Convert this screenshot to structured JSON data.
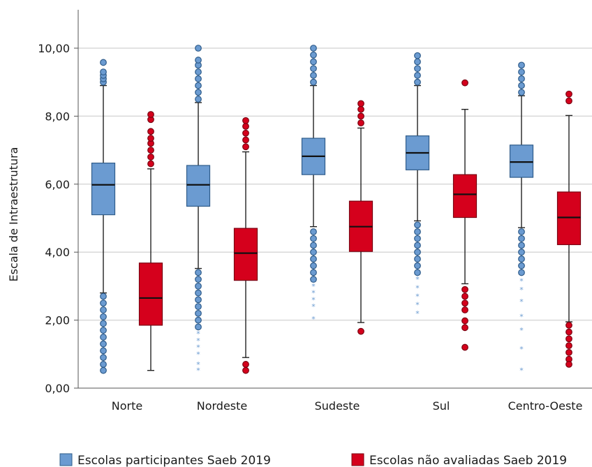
{
  "chart_data": {
    "type": "boxplot",
    "ylabel": "Escala de Intraestrutura",
    "ylim": [
      0,
      10.6
    ],
    "yticks": [
      "0,00",
      "2,00",
      "4,00",
      "6,00",
      "8,00",
      "10,00"
    ],
    "yticks_values": [
      0,
      2,
      4,
      6,
      8,
      10
    ],
    "grid": true,
    "legend_position": "bottom",
    "categories": [
      "Norte",
      "Nordeste",
      "Sudeste",
      "Sul",
      "Centro-Oeste"
    ],
    "colors": {
      "participantes": "#6b9bd1",
      "participantes_edge": "#2f5c8a",
      "nao_avaliadas": "#d5001c",
      "nao_avaliadas_edge": "#7a0010",
      "grid": "#d9d9d9",
      "axis": "#555555"
    },
    "series": [
      {
        "name": "Escolas participantes Saeb 2019",
        "boxes": [
          {
            "q1": 5.1,
            "median": 5.98,
            "q3": 6.62,
            "whisker_low": 2.8,
            "whisker_high": 8.9,
            "outliers_high": [
              9.0,
              9.1,
              9.2,
              9.3,
              9.58
            ],
            "outliers_low": [
              2.7,
              2.5,
              2.3,
              2.1,
              1.9,
              1.7,
              1.5,
              1.3,
              1.1,
              0.9,
              0.7,
              0.52
            ],
            "extremes_low": []
          },
          {
            "q1": 5.35,
            "median": 5.98,
            "q3": 6.55,
            "whisker_low": 3.52,
            "whisker_high": 8.4,
            "outliers_high": [
              8.5,
              8.7,
              8.9,
              9.1,
              9.3,
              9.5,
              9.65,
              10.0
            ],
            "outliers_low": [
              3.4,
              3.2,
              3.0,
              2.8,
              2.6,
              2.4,
              2.2,
              2.0,
              1.8
            ],
            "extremes_low": [
              1.6,
              1.4,
              1.2,
              1.0,
              0.7,
              0.52
            ]
          },
          {
            "q1": 6.28,
            "median": 6.82,
            "q3": 7.35,
            "whisker_low": 4.75,
            "whisker_high": 8.9,
            "outliers_high": [
              9.0,
              9.2,
              9.4,
              9.6,
              9.8,
              10.0
            ],
            "outliers_low": [
              4.6,
              4.4,
              4.2,
              4.0,
              3.8,
              3.6,
              3.4,
              3.2
            ],
            "extremes_low": [
              3.0,
              2.8,
              2.6,
              2.4,
              2.03
            ]
          },
          {
            "q1": 6.42,
            "median": 6.92,
            "q3": 7.42,
            "whisker_low": 4.92,
            "whisker_high": 8.9,
            "outliers_high": [
              9.0,
              9.2,
              9.4,
              9.6,
              9.78
            ],
            "outliers_low": [
              4.8,
              4.6,
              4.4,
              4.2,
              4.0,
              3.8,
              3.6,
              3.4
            ],
            "extremes_low": [
              3.2,
              2.95,
              2.7,
              2.45,
              2.2
            ]
          },
          {
            "q1": 6.2,
            "median": 6.65,
            "q3": 7.15,
            "whisker_low": 4.72,
            "whisker_high": 8.6,
            "outliers_high": [
              8.7,
              8.9,
              9.1,
              9.3,
              9.5
            ],
            "outliers_low": [
              4.6,
              4.4,
              4.2,
              4.0,
              3.8,
              3.6,
              3.4
            ],
            "extremes_low": [
              3.15,
              2.9,
              2.55,
              2.1,
              1.7,
              1.15,
              0.52
            ]
          }
        ]
      },
      {
        "name": "Escolas não avaliadas Saeb 2019",
        "boxes": [
          {
            "q1": 1.85,
            "median": 2.65,
            "q3": 3.68,
            "whisker_low": 0.52,
            "whisker_high": 6.45,
            "outliers_high": [
              6.6,
              6.8,
              7.0,
              7.2,
              7.35,
              7.55,
              7.9,
              8.05
            ],
            "outliers_low": [],
            "extremes_low": []
          },
          {
            "q1": 3.17,
            "median": 3.97,
            "q3": 4.7,
            "whisker_low": 0.9,
            "whisker_high": 6.95,
            "outliers_high": [
              7.1,
              7.3,
              7.5,
              7.7,
              7.87
            ],
            "outliers_low": [
              0.7,
              0.52
            ],
            "extremes_low": []
          },
          {
            "q1": 4.02,
            "median": 4.75,
            "q3": 5.5,
            "whisker_low": 1.93,
            "whisker_high": 7.65,
            "outliers_high": [
              7.8,
              8.0,
              8.2,
              8.37
            ],
            "outliers_low": [
              1.67
            ],
            "extremes_low": []
          },
          {
            "q1": 5.02,
            "median": 5.7,
            "q3": 6.28,
            "whisker_low": 3.07,
            "whisker_high": 8.2,
            "outliers_high": [
              8.98
            ],
            "outliers_low": [
              2.9,
              2.7,
              2.5,
              2.3,
              1.98,
              1.78,
              1.2
            ],
            "extremes_low": []
          },
          {
            "q1": 4.22,
            "median": 5.02,
            "q3": 5.77,
            "whisker_low": 1.95,
            "whisker_high": 8.02,
            "outliers_high": [
              8.45,
              8.65
            ],
            "outliers_low": [
              1.85,
              1.65,
              1.45,
              1.25,
              1.05,
              0.85,
              0.7
            ],
            "extremes_low": []
          }
        ]
      }
    ]
  }
}
